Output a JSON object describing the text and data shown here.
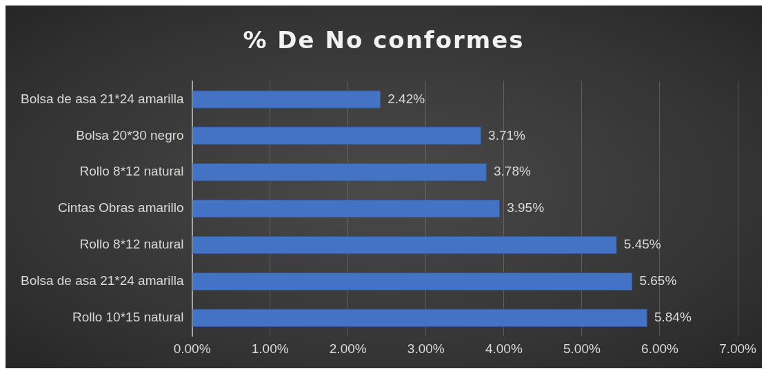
{
  "chart_data": {
    "type": "bar",
    "orientation": "horizontal",
    "title": "% De No conformes",
    "categories": [
      "Bolsa de asa 21*24 amarilla",
      "Bolsa 20*30 negro",
      "Rollo 8*12 natural",
      "Cintas Obras amarillo",
      "Rollo 8*12 natural",
      "Bolsa de asa 21*24 amarilla",
      "Rollo 10*15 natural"
    ],
    "values": [
      2.42,
      3.71,
      3.78,
      3.95,
      5.45,
      5.65,
      5.84
    ],
    "value_labels": [
      "2.42%",
      "3.71%",
      "3.78%",
      "3.95%",
      "5.45%",
      "5.65%",
      "5.84%"
    ],
    "color": "#4472c4",
    "xlim": [
      0,
      7
    ],
    "xticks": [
      {
        "value": 0,
        "label": "0.00%"
      },
      {
        "value": 1,
        "label": "1.00%"
      },
      {
        "value": 2,
        "label": "2.00%"
      },
      {
        "value": 3,
        "label": "3.00%"
      },
      {
        "value": 4,
        "label": "4.00%"
      },
      {
        "value": 5,
        "label": "5.00%"
      },
      {
        "value": 6,
        "label": "6.00%"
      },
      {
        "value": 7,
        "label": "7.00%"
      }
    ],
    "grid": "x",
    "legend": false
  }
}
